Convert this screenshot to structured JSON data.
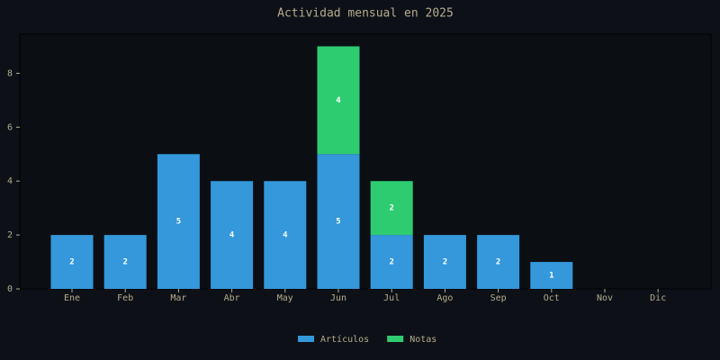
{
  "chart_data": {
    "type": "stacked-bar",
    "title": "Actividad mensual en 2025",
    "categories": [
      "Ene",
      "Feb",
      "Mar",
      "Abr",
      "May",
      "Jun",
      "Jul",
      "Ago",
      "Sep",
      "Oct",
      "Nov",
      "Dic"
    ],
    "series": [
      {
        "name": "Artículos",
        "color": "#3498db",
        "values": [
          2,
          2,
          5,
          4,
          4,
          5,
          2,
          2,
          2,
          1,
          0,
          0
        ]
      },
      {
        "name": "Notas",
        "color": "#2ecc71",
        "values": [
          0,
          0,
          0,
          0,
          0,
          4,
          2,
          0,
          0,
          0,
          0,
          0
        ]
      }
    ],
    "ylim": [
      0,
      9.45
    ],
    "yticks": [
      0,
      2,
      4,
      6,
      8
    ],
    "legend": "bottom"
  }
}
